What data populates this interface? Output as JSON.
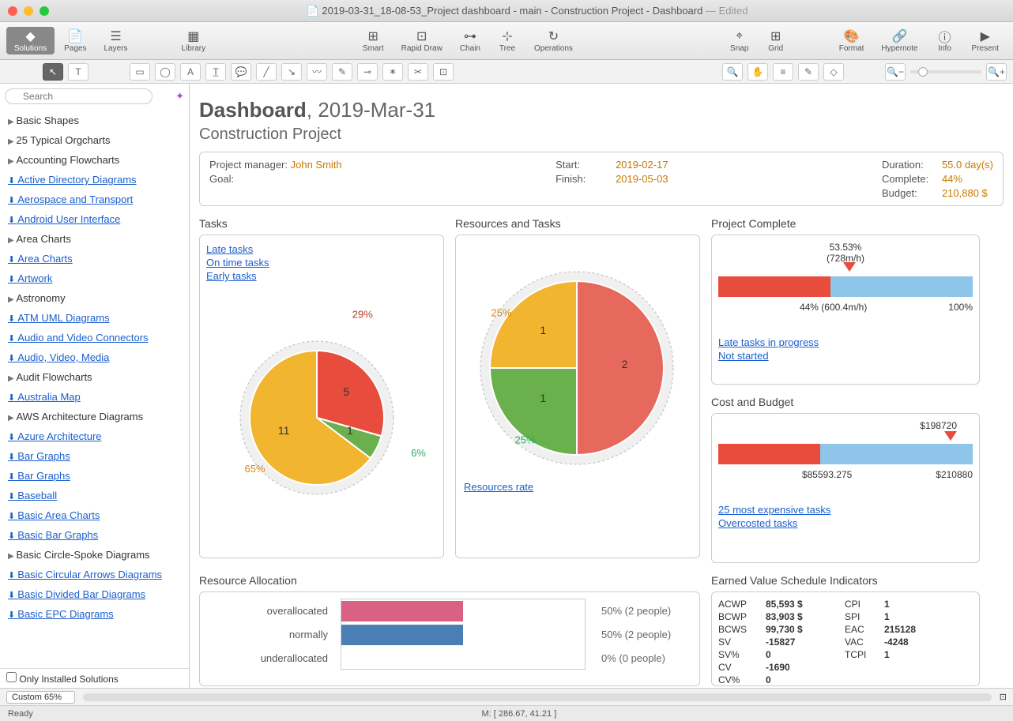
{
  "window": {
    "title": "2019-03-31_18-08-53_Project dashboard - main - Construction Project - Dashboard",
    "edited": "— Edited"
  },
  "toolbar": {
    "solutions": "Solutions",
    "pages": "Pages",
    "layers": "Layers",
    "library": "Library",
    "smart": "Smart",
    "rapid": "Rapid Draw",
    "chain": "Chain",
    "tree": "Tree",
    "operations": "Operations",
    "snap": "Snap",
    "grid": "Grid",
    "format": "Format",
    "hypernote": "Hypernote",
    "info": "Info",
    "present": "Present"
  },
  "sidebar": {
    "search_placeholder": "Search",
    "items": [
      {
        "label": "Basic Shapes",
        "type": "expand"
      },
      {
        "label": "25 Typical Orgcharts",
        "type": "expand"
      },
      {
        "label": "Accounting Flowcharts",
        "type": "expand"
      },
      {
        "label": "Active Directory Diagrams",
        "type": "link"
      },
      {
        "label": "Aerospace and Transport",
        "type": "link"
      },
      {
        "label": "Android User Interface",
        "type": "link"
      },
      {
        "label": "Area Charts",
        "type": "expand"
      },
      {
        "label": "Area Charts",
        "type": "link"
      },
      {
        "label": "Artwork",
        "type": "link"
      },
      {
        "label": "Astronomy",
        "type": "expand"
      },
      {
        "label": "ATM UML Diagrams",
        "type": "link"
      },
      {
        "label": "Audio and Video Connectors",
        "type": "link"
      },
      {
        "label": "Audio, Video, Media",
        "type": "link"
      },
      {
        "label": "Audit Flowcharts",
        "type": "expand"
      },
      {
        "label": "Australia Map",
        "type": "link"
      },
      {
        "label": "AWS Architecture Diagrams",
        "type": "expand"
      },
      {
        "label": "Azure Architecture",
        "type": "link"
      },
      {
        "label": "Bar Graphs",
        "type": "link"
      },
      {
        "label": "Bar Graphs",
        "type": "link"
      },
      {
        "label": "Baseball",
        "type": "link"
      },
      {
        "label": "Basic Area Charts",
        "type": "link"
      },
      {
        "label": "Basic Bar Graphs",
        "type": "link"
      },
      {
        "label": "Basic Circle-Spoke Diagrams",
        "type": "expand"
      },
      {
        "label": "Basic Circular Arrows Diagrams",
        "type": "link"
      },
      {
        "label": "Basic Divided Bar Diagrams",
        "type": "link"
      },
      {
        "label": "Basic EPC Diagrams",
        "type": "link"
      }
    ],
    "only_installed": "Only Installed Solutions"
  },
  "dashboard": {
    "title_bold": "Dashboard",
    "title_date": ", 2019-Mar-31",
    "subtitle": "Construction Project",
    "pm_label": "Project manager:",
    "pm_name": "John Smith",
    "goal_label": "Goal:",
    "start_label": "Start:",
    "start_val": "2019-02-17",
    "finish_label": "Finish:",
    "finish_val": "2019-05-03",
    "duration_label": "Duration:",
    "duration_val": "55.0 day(s)",
    "complete_label": "Complete:",
    "complete_val": "44%",
    "budget_label": "Budget:",
    "budget_val": "210,880 $"
  },
  "tasks_panel": {
    "title": "Tasks",
    "links": [
      "Late tasks",
      "On time tasks",
      "Early tasks"
    ],
    "pie": {
      "slices": [
        {
          "value": 5,
          "pct": "29%",
          "color": "#e74c3c",
          "label_color": "#c0392b"
        },
        {
          "value": 1,
          "pct": "6%",
          "color": "#6ab04c",
          "label_color": "#27ae60"
        },
        {
          "value": 11,
          "pct": "65%",
          "color": "#f1b530",
          "label_color": "#d68910"
        }
      ]
    }
  },
  "resources_panel": {
    "title": "Resources and Tasks",
    "link": "Resources rate",
    "pie": {
      "slices": [
        {
          "value": 2,
          "pct": "50%",
          "color": "#e7695d",
          "label_color": "#c0392b"
        },
        {
          "value": 1,
          "pct": "25%",
          "color": "#6ab04c",
          "label_color": "#27ae60"
        },
        {
          "value": 1,
          "pct": "25%",
          "color": "#f1b530",
          "label_color": "#d68910"
        }
      ]
    }
  },
  "complete_panel": {
    "title": "Project Complete",
    "top_label": "53.53%",
    "top_sub": "(728m/h)",
    "bar": {
      "red_pct": 44,
      "total_color_red": "#e74c3c",
      "total_color_blue": "#8ec5e8"
    },
    "left_label": "44% (600.4m/h)",
    "right_label": "100%",
    "links": [
      "Late tasks in progress",
      "Not started"
    ]
  },
  "cost_panel": {
    "title": "Cost and Budget",
    "top_label": "$198720",
    "bar": {
      "red_pct": 40
    },
    "mid_label": "$85593.275",
    "right_label": "$210880",
    "links": [
      "25 most expensive tasks",
      "Overcosted tasks"
    ]
  },
  "ra_panel": {
    "title": "Resource Allocation",
    "rows": [
      {
        "label": "overallocated",
        "pct": 50,
        "text": "50% (2 people)",
        "color": "#d96284"
      },
      {
        "label": "normally",
        "pct": 50,
        "text": "50% (2 people)",
        "color": "#4a7fb5"
      },
      {
        "label": "underallocated",
        "pct": 0,
        "text": "0% (0 people)",
        "color": "#999"
      }
    ]
  },
  "evi_panel": {
    "title": "Earned Value Schedule Indicators",
    "rows": [
      [
        "ACWP",
        "85,593 $",
        "CPI",
        "1"
      ],
      [
        "BCWP",
        "83,903 $",
        "SPI",
        "1"
      ],
      [
        "BCWS",
        "99,730 $",
        "EAC",
        "215128"
      ],
      [
        "SV",
        "-15827",
        "VAC",
        "-4248"
      ],
      [
        "SV%",
        "0",
        "TCPI",
        "1"
      ],
      [
        "CV",
        "-1690",
        "",
        ""
      ],
      [
        "CV%",
        "0",
        "",
        ""
      ]
    ]
  },
  "bottom": {
    "zoom": "Custom 65%"
  },
  "status": {
    "ready": "Ready",
    "coords": "M: [ 286.67, 41.21 ]"
  }
}
